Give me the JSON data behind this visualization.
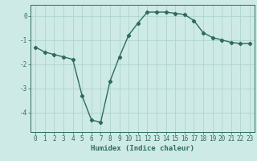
{
  "x": [
    0,
    1,
    2,
    3,
    4,
    5,
    6,
    7,
    8,
    9,
    10,
    11,
    12,
    13,
    14,
    15,
    16,
    17,
    18,
    19,
    20,
    21,
    22,
    23
  ],
  "y": [
    -1.3,
    -1.5,
    -1.6,
    -1.7,
    -1.8,
    -3.3,
    -4.3,
    -4.4,
    -2.7,
    -1.7,
    -0.8,
    -0.3,
    0.15,
    0.15,
    0.15,
    0.1,
    0.05,
    -0.2,
    -0.7,
    -0.9,
    -1.0,
    -1.1,
    -1.15,
    -1.15
  ],
  "line_color": "#2e6b5e",
  "marker": "D",
  "markersize": 2.2,
  "linewidth": 1.0,
  "xlabel": "Humidex (Indice chaleur)",
  "xlabel_fontsize": 6.5,
  "yticks": [
    0,
    -1,
    -2,
    -3,
    -4
  ],
  "ylim": [
    -4.8,
    0.45
  ],
  "xlim": [
    -0.5,
    23.5
  ],
  "background_color": "#ceeae6",
  "grid_color": "#aed4ce",
  "tick_fontsize": 5.5,
  "tick_color": "#2e6b5e"
}
